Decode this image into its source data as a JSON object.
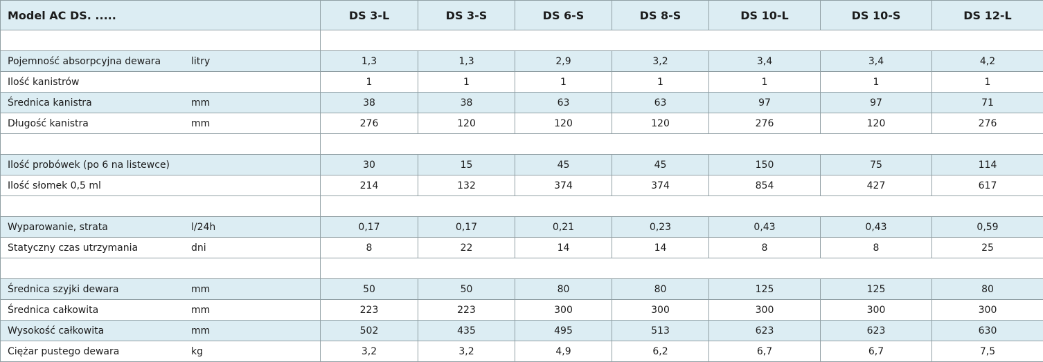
{
  "header": {
    "title": "Model  AC DS. .....",
    "models": [
      "DS 3-L",
      "DS 3-S",
      "DS 6-S",
      "DS 8-S",
      "DS 10-L",
      "DS 10-S",
      "DS 12-L"
    ]
  },
  "sections": [
    {
      "rows": [
        {
          "label": "Pojemność absorpcyjna dewara",
          "unit": "litry",
          "values": [
            "1,3",
            "1,3",
            "2,9",
            "3,2",
            "3,4",
            "3,4",
            "4,2"
          ]
        },
        {
          "label": "Ilość kanistrów",
          "values": [
            "1",
            "1",
            "1",
            "1",
            "1",
            "1",
            "1"
          ]
        },
        {
          "label": "Średnica kanistra",
          "unit": "mm",
          "values": [
            "38",
            "38",
            "63",
            "63",
            "97",
            "97",
            "71"
          ]
        },
        {
          "label": "Długość kanistra",
          "unit": "mm",
          "values": [
            "276",
            "120",
            "120",
            "120",
            "276",
            "120",
            "276"
          ]
        }
      ]
    },
    {
      "rows": [
        {
          "label": "Ilość probówek (po 6 na listewce)",
          "values": [
            "30",
            "15",
            "45",
            "45",
            "150",
            "75",
            "114"
          ]
        },
        {
          "label": "Ilość słomek 0,5 ml",
          "values": [
            "214",
            "132",
            "374",
            "374",
            "854",
            "427",
            "617"
          ]
        }
      ]
    },
    {
      "rows": [
        {
          "label": "Wyparowanie, strata",
          "unit": "l/24h",
          "values": [
            "0,17",
            "0,17",
            "0,21",
            "0,23",
            "0,43",
            "0,43",
            "0,59"
          ]
        },
        {
          "label": "Statyczny czas utrzymania",
          "unit": "dni",
          "values": [
            "8",
            "22",
            "14",
            "14",
            "8",
            "8",
            "25"
          ]
        }
      ]
    },
    {
      "rows": [
        {
          "label": "Średnica szyjki dewara",
          "unit": "mm",
          "values": [
            "50",
            "50",
            "80",
            "80",
            "125",
            "125",
            "80"
          ]
        },
        {
          "label": "Średnica całkowita",
          "unit": "mm",
          "values": [
            "223",
            "223",
            "300",
            "300",
            "300",
            "300",
            "300"
          ]
        },
        {
          "label": "Wysokość całkowita",
          "unit": "mm",
          "values": [
            "502",
            "435",
            "495",
            "513",
            "623",
            "623",
            "630"
          ]
        },
        {
          "label": "Ciężar pustego dewara",
          "unit": "kg",
          "values": [
            "3,2",
            "3,2",
            "4,9",
            "6,2",
            "6,7",
            "6,7",
            "7,5"
          ]
        }
      ]
    }
  ]
}
